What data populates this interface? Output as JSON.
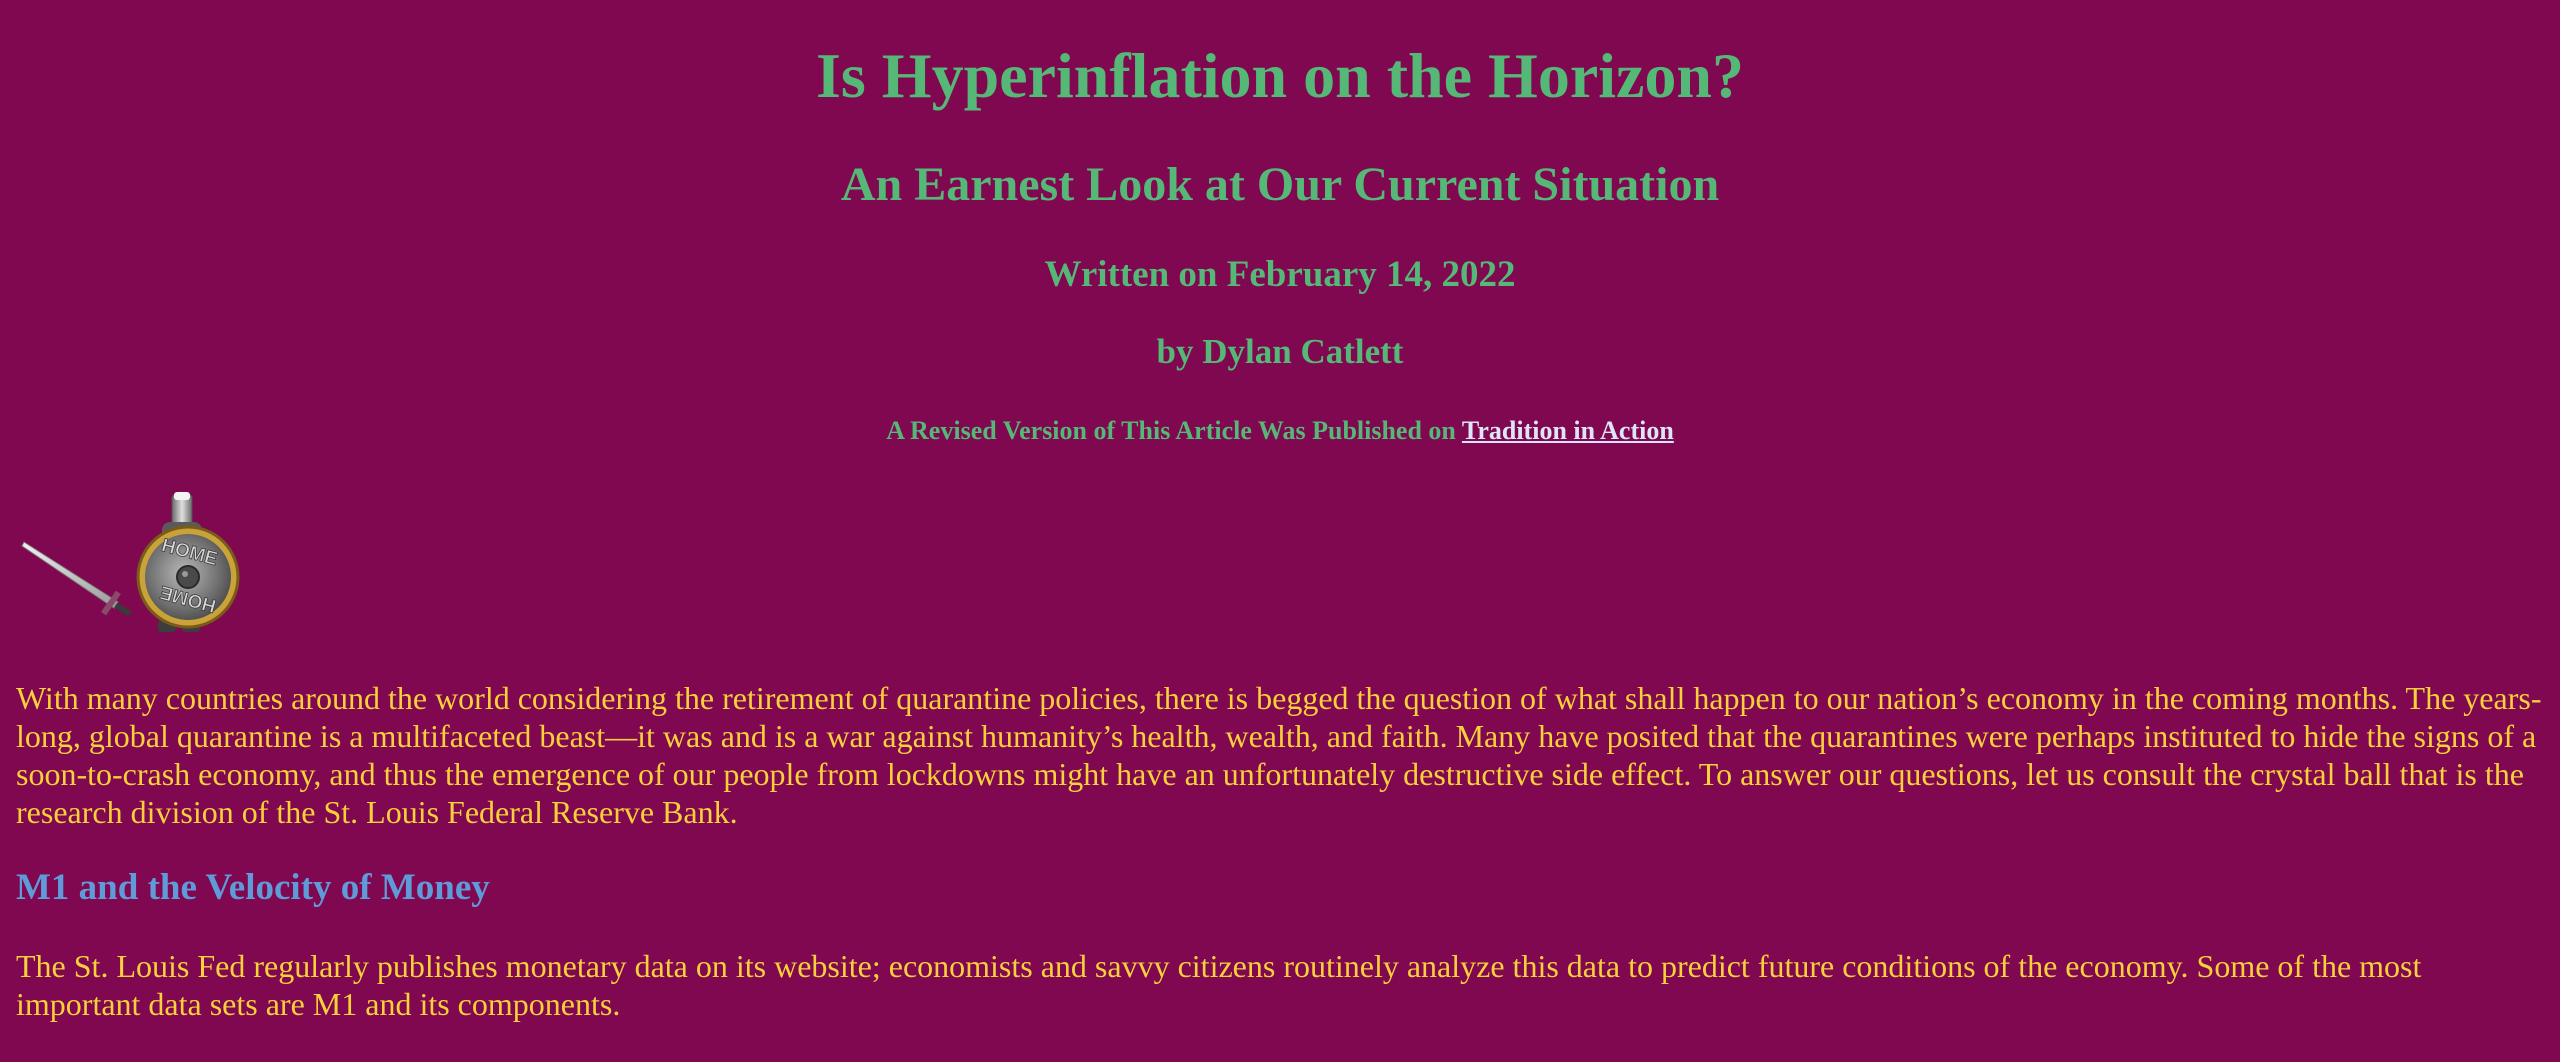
{
  "header": {
    "title": "Is Hyperinflation on the Horizon?",
    "subtitle": "An Earnest Look at Our Current Situation",
    "date": "Written on February 14, 2022",
    "byline": "by Dylan Catlett",
    "revised_prefix": "A Revised Version of This Article Was Published on ",
    "revised_link": "Tradition in Action"
  },
  "home_icon": {
    "icon": "home-shield-sword-icon",
    "shield_text_top": "HOME",
    "shield_text_bottom": "HOME"
  },
  "article": {
    "intro": "With many countries around the world considering the retirement of quarantine policies, there is begged the question of what shall happen to our nation’s economy in the coming months. The years-long, global quarantine is a multifaceted beast—it was and is a war against humanity’s health, wealth, and faith. Many have posited that the quarantines were perhaps instituted to hide the signs of a soon-to-crash economy, and thus the emergence of our people from lockdowns might have an unfortunately destructive side effect. To answer our questions, let us consult the crystal ball that is the research division of the St. Louis Federal Reserve Bank.",
    "section_heading": "M1 and the Velocity of Money",
    "section_paragraph": "The St. Louis Fed regularly publishes monetary data on its website; economists and savvy citizens routinely analyze this data to predict future conditions of the economy. Some of the most important data sets are M1 and its components."
  },
  "colors": {
    "background": "#800850",
    "heading": "#55b877",
    "body_text": "#f7d03a",
    "section_heading": "#5f9bd8",
    "link": "#dde6f7"
  }
}
